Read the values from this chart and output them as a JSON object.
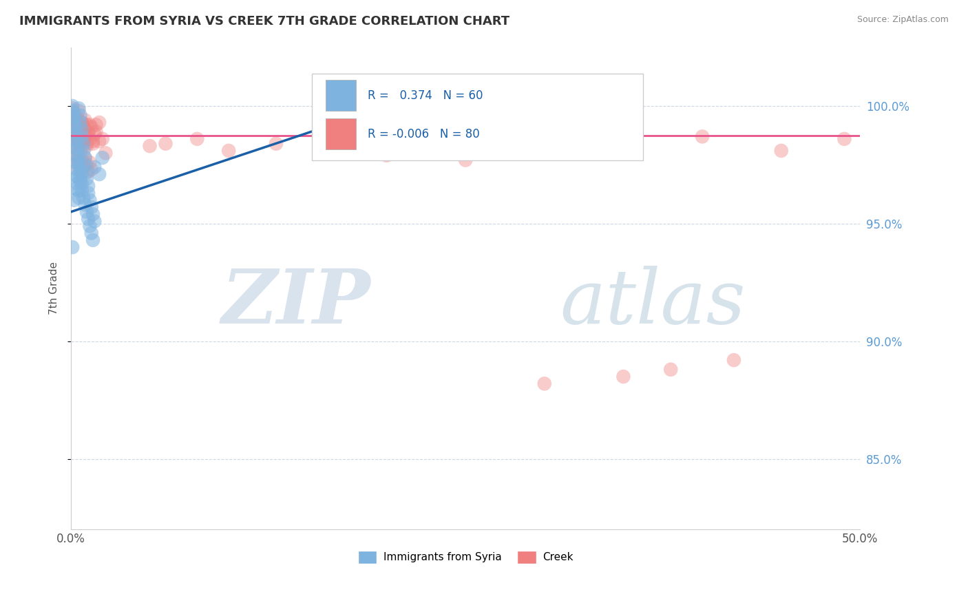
{
  "title": "IMMIGRANTS FROM SYRIA VS CREEK 7TH GRADE CORRELATION CHART",
  "source": "Source: ZipAtlas.com",
  "ylabel": "7th Grade",
  "ytick_labels": [
    "85.0%",
    "90.0%",
    "95.0%",
    "100.0%"
  ],
  "ytick_values": [
    0.85,
    0.9,
    0.95,
    1.0
  ],
  "xlim": [
    0.0,
    0.5
  ],
  "ylim": [
    0.82,
    1.025
  ],
  "r_blue": 0.374,
  "n_blue": 60,
  "r_pink": -0.006,
  "n_pink": 80,
  "blue_color": "#7eb3e0",
  "pink_color": "#f08080",
  "trend_blue_color": "#1a5fa8",
  "trend_pink_color": "#e8538a",
  "watermark_zip_color": "#c8d8e8",
  "watermark_atlas_color": "#b0c8d8",
  "blue_scatter_x": [
    0.001,
    0.001,
    0.002,
    0.002,
    0.002,
    0.003,
    0.003,
    0.003,
    0.004,
    0.004,
    0.004,
    0.005,
    0.005,
    0.005,
    0.006,
    0.006,
    0.007,
    0.007,
    0.008,
    0.008,
    0.009,
    0.009,
    0.01,
    0.01,
    0.011,
    0.011,
    0.012,
    0.013,
    0.014,
    0.015,
    0.001,
    0.002,
    0.002,
    0.003,
    0.003,
    0.004,
    0.004,
    0.005,
    0.005,
    0.006,
    0.006,
    0.007,
    0.007,
    0.008,
    0.009,
    0.01,
    0.011,
    0.012,
    0.013,
    0.014,
    0.001,
    0.002,
    0.003,
    0.004,
    0.005,
    0.006,
    0.007,
    0.02,
    0.015,
    0.018
  ],
  "blue_scatter_y": [
    0.998,
    0.995,
    0.992,
    0.988,
    0.985,
    0.982,
    0.979,
    0.976,
    0.973,
    0.97,
    0.967,
    0.964,
    0.961,
    0.999,
    0.996,
    0.993,
    0.99,
    0.987,
    0.984,
    0.981,
    0.978,
    0.975,
    0.972,
    0.969,
    0.966,
    0.963,
    0.96,
    0.957,
    0.954,
    0.951,
    1.0,
    0.997,
    0.994,
    0.991,
    0.988,
    0.985,
    0.982,
    0.979,
    0.976,
    0.973,
    0.97,
    0.967,
    0.964,
    0.961,
    0.958,
    0.955,
    0.952,
    0.949,
    0.946,
    0.943,
    0.94,
    0.96,
    0.965,
    0.97,
    0.975,
    0.968,
    0.972,
    0.978,
    0.974,
    0.971
  ],
  "pink_scatter_x": [
    0.001,
    0.001,
    0.002,
    0.002,
    0.002,
    0.003,
    0.003,
    0.003,
    0.004,
    0.004,
    0.004,
    0.005,
    0.005,
    0.006,
    0.006,
    0.007,
    0.007,
    0.008,
    0.008,
    0.009,
    0.009,
    0.01,
    0.01,
    0.011,
    0.012,
    0.013,
    0.014,
    0.015,
    0.016,
    0.018,
    0.001,
    0.002,
    0.002,
    0.003,
    0.003,
    0.004,
    0.005,
    0.005,
    0.006,
    0.007,
    0.008,
    0.009,
    0.01,
    0.011,
    0.012,
    0.014,
    0.016,
    0.018,
    0.02,
    0.022,
    0.001,
    0.002,
    0.003,
    0.004,
    0.005,
    0.006,
    0.007,
    0.008,
    0.009,
    0.01,
    0.011,
    0.012,
    0.013,
    0.05,
    0.08,
    0.1,
    0.13,
    0.16,
    0.2,
    0.25,
    0.3,
    0.35,
    0.4,
    0.45,
    0.49,
    0.06,
    0.38,
    0.42,
    0.35,
    0.3
  ],
  "pink_scatter_y": [
    0.999,
    0.996,
    0.993,
    0.997,
    0.991,
    0.989,
    0.994,
    0.987,
    0.992,
    0.988,
    0.995,
    0.986,
    0.998,
    0.99,
    0.984,
    0.993,
    0.988,
    0.991,
    0.985,
    0.994,
    0.987,
    0.992,
    0.983,
    0.989,
    0.986,
    0.991,
    0.984,
    0.988,
    0.992,
    0.985,
    0.99,
    0.994,
    0.987,
    0.991,
    0.984,
    0.988,
    0.992,
    0.985,
    0.989,
    0.993,
    0.986,
    0.99,
    0.984,
    0.988,
    0.992,
    0.985,
    0.989,
    0.993,
    0.986,
    0.98,
    0.975,
    0.978,
    0.982,
    0.979,
    0.976,
    0.981,
    0.977,
    0.974,
    0.978,
    0.975,
    0.972,
    0.976,
    0.973,
    0.983,
    0.986,
    0.981,
    0.984,
    0.982,
    0.979,
    0.977,
    0.985,
    0.983,
    0.987,
    0.981,
    0.986,
    0.984,
    0.888,
    0.892,
    0.885,
    0.882
  ],
  "blue_trend_x": [
    0.0,
    0.21
  ],
  "blue_trend_y": [
    0.955,
    1.002
  ],
  "pink_trend_x": [
    0.0,
    0.5
  ],
  "pink_trend_y": [
    0.9875,
    0.9875
  ]
}
